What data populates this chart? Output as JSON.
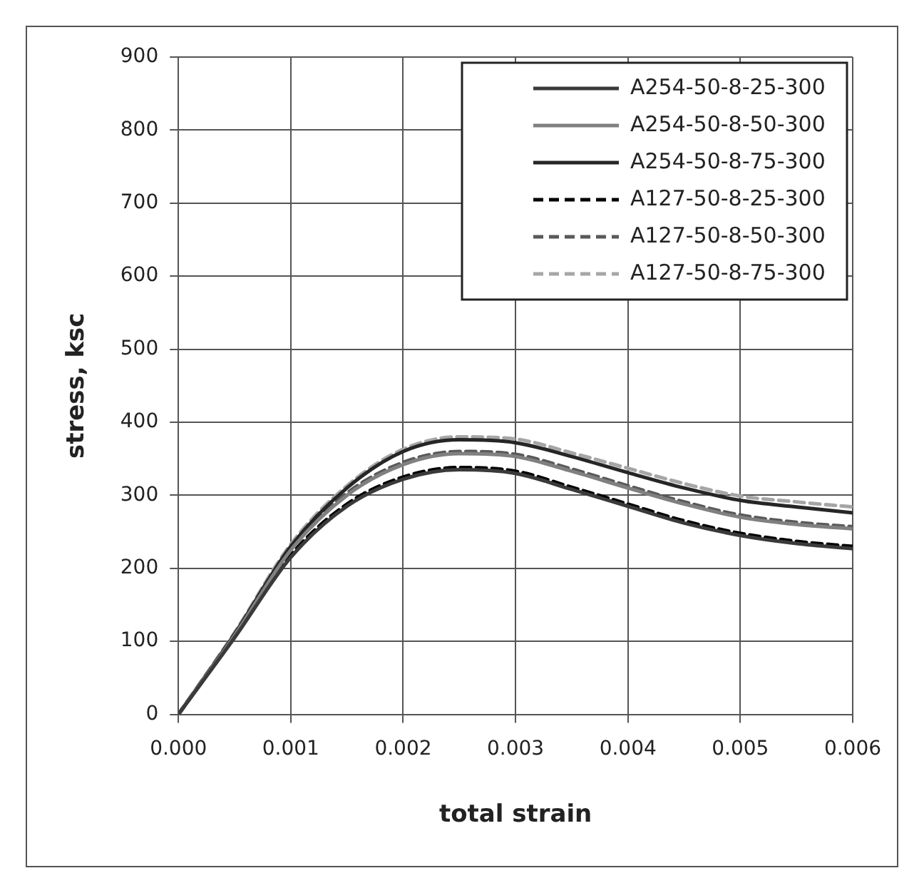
{
  "chart_data": {
    "type": "line",
    "xlabel": "total strain",
    "ylabel": "stress, ksc",
    "x": [
      0,
      0.0005,
      0.001,
      0.0015,
      0.002,
      0.0025,
      0.003,
      0.0035,
      0.004,
      0.0045,
      0.005,
      0.0055,
      0.006
    ],
    "series": [
      {
        "name": "A254-50-8-25-300",
        "color": "#3a3a3a",
        "line_style": "solid",
        "values": [
          0,
          105,
          215,
          285,
          322,
          335,
          330,
          308,
          285,
          262,
          245,
          234,
          227
        ]
      },
      {
        "name": "A254-50-8-50-300",
        "color": "#808080",
        "line_style": "solid",
        "values": [
          0,
          108,
          225,
          300,
          342,
          357,
          353,
          333,
          310,
          288,
          270,
          260,
          254
        ]
      },
      {
        "name": "A254-50-8-75-300",
        "color": "#262626",
        "line_style": "solid",
        "values": [
          0,
          110,
          230,
          310,
          360,
          376,
          372,
          353,
          331,
          310,
          293,
          284,
          276
        ]
      },
      {
        "name": "A127-50-8-25-300",
        "color": "#000000",
        "line_style": "dashed",
        "values": [
          0,
          107,
          218,
          288,
          325,
          338,
          333,
          311,
          288,
          265,
          248,
          237,
          230
        ]
      },
      {
        "name": "A127-50-8-50-300",
        "color": "#595959",
        "line_style": "dashed",
        "values": [
          0,
          110,
          228,
          303,
          345,
          360,
          356,
          336,
          313,
          291,
          273,
          263,
          257
        ]
      },
      {
        "name": "A127-50-8-75-300",
        "color": "#a6a6a6",
        "line_style": "dashed",
        "values": [
          0,
          112,
          233,
          313,
          363,
          380,
          377,
          358,
          337,
          316,
          299,
          291,
          284
        ]
      }
    ],
    "xlim": [
      0,
      0.006
    ],
    "xticks": [
      {
        "value": 0,
        "label": "0.000"
      },
      {
        "value": 0.001,
        "label": "0.001"
      },
      {
        "value": 0.002,
        "label": "0.002"
      },
      {
        "value": 0.003,
        "label": "0.003"
      },
      {
        "value": 0.004,
        "label": "0.004"
      },
      {
        "value": 0.005,
        "label": "0.005"
      },
      {
        "value": 0.006,
        "label": "0.006"
      }
    ],
    "ylim": [
      0,
      900
    ],
    "yticks": [
      0,
      100,
      200,
      300,
      400,
      500,
      600,
      700,
      800,
      900
    ],
    "grid": true,
    "legend": "top right",
    "marker": "none"
  }
}
